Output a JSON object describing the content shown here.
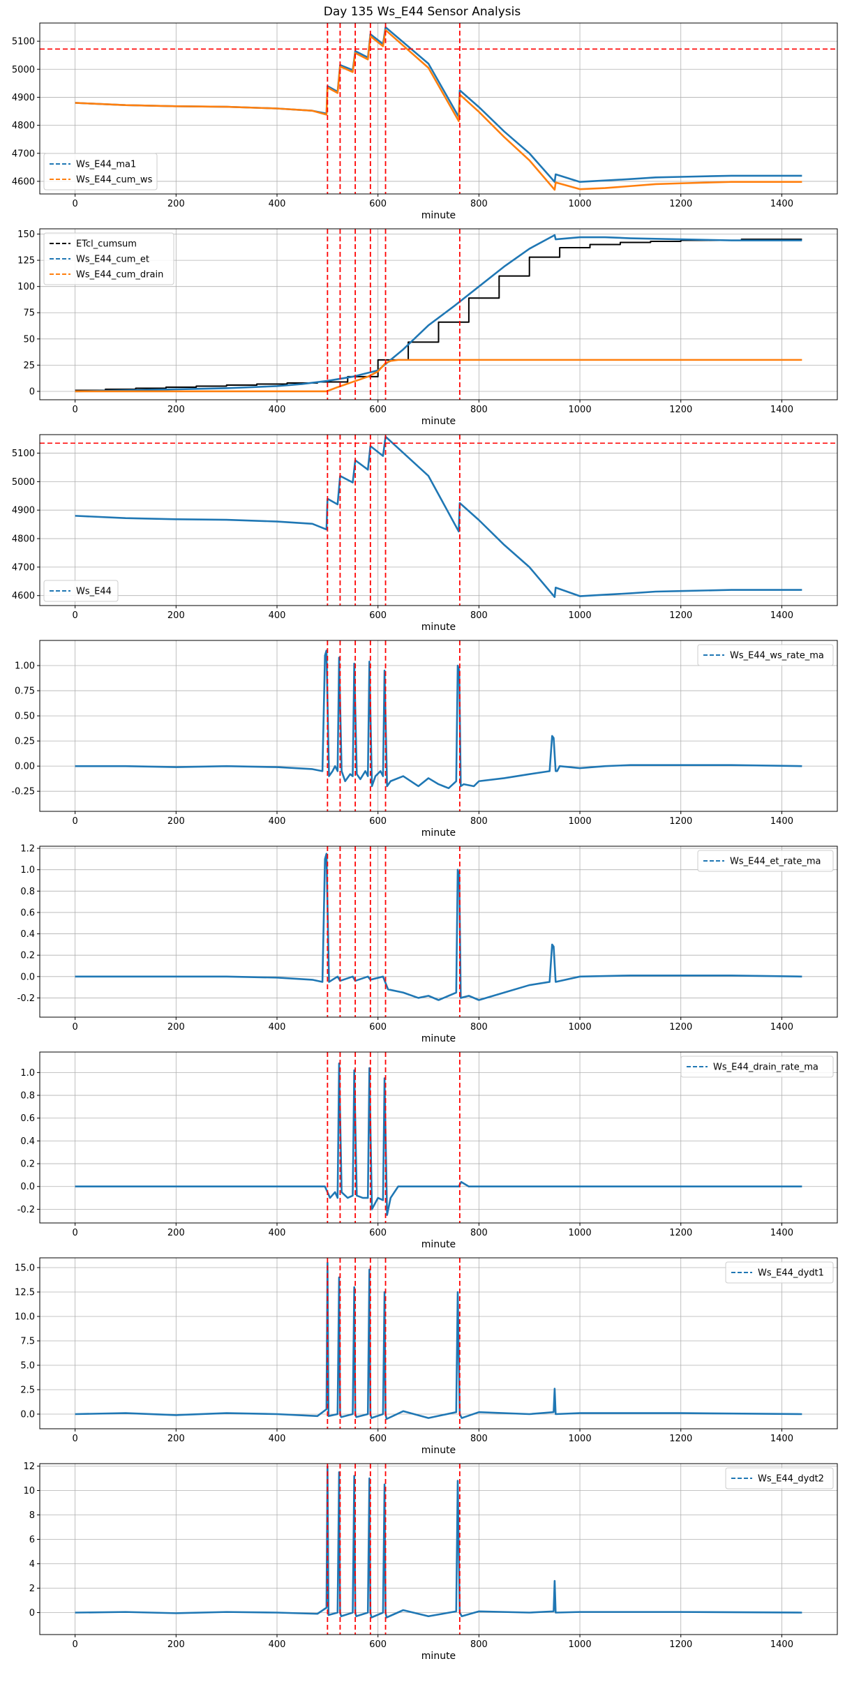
{
  "figure_title": "Day 135 Ws_E44 Sensor Analysis",
  "colors": {
    "blue": "#1f77b4",
    "orange": "#ff7f0e",
    "black": "#000000",
    "red": "#ff0000",
    "grid": "#b0b0b0"
  },
  "event_markers": [
    500,
    525,
    555,
    585,
    615,
    762
  ],
  "chart_data": [
    {
      "type": "line",
      "xlabel": "minute",
      "ylabel": "",
      "xlim": [
        -70,
        1510
      ],
      "ylim": [
        4555,
        5165
      ],
      "xticks": [
        0,
        200,
        400,
        600,
        800,
        1000,
        1200,
        1400
      ],
      "yticks": [
        4600,
        4700,
        4800,
        4900,
        5000,
        5100
      ],
      "hline": 5072,
      "legend": "lower-left",
      "series": [
        {
          "name": "Ws_E44_ma1",
          "color": "blue",
          "x": [
            0,
            100,
            200,
            300,
            400,
            470,
            498,
            500,
            520,
            525,
            550,
            555,
            580,
            585,
            610,
            615,
            700,
            760,
            762,
            800,
            850,
            900,
            950,
            952,
            1000,
            1050,
            1100,
            1150,
            1200,
            1300,
            1440
          ],
          "y": [
            4880,
            4872,
            4868,
            4866,
            4860,
            4852,
            4842,
            4940,
            4920,
            5015,
            4997,
            5065,
            5042,
            5125,
            5090,
            5150,
            5020,
            4830,
            4925,
            4865,
            4778,
            4700,
            4598,
            4625,
            4598,
            4603,
            4608,
            4614,
            4616,
            4620,
            4620
          ]
        },
        {
          "name": "Ws_E44_cum_ws",
          "color": "orange",
          "x": [
            0,
            100,
            200,
            300,
            400,
            470,
            498,
            500,
            520,
            525,
            550,
            555,
            580,
            585,
            610,
            615,
            700,
            760,
            762,
            800,
            850,
            900,
            950,
            952,
            1000,
            1050,
            1100,
            1150,
            1200,
            1300,
            1440
          ],
          "y": [
            4880,
            4872,
            4868,
            4866,
            4860,
            4852,
            4838,
            4935,
            4915,
            5010,
            4990,
            5058,
            5035,
            5118,
            5082,
            5140,
            5005,
            4815,
            4910,
            4848,
            4758,
            4675,
            4570,
            4596,
            4572,
            4576,
            4583,
            4590,
            4593,
            4598,
            4598
          ]
        }
      ]
    },
    {
      "type": "line",
      "xlabel": "minute",
      "ylabel": "",
      "xlim": [
        -70,
        1510
      ],
      "ylim": [
        -8,
        155
      ],
      "xticks": [
        0,
        200,
        400,
        600,
        800,
        1000,
        1200,
        1400
      ],
      "yticks": [
        0,
        25,
        50,
        75,
        100,
        125,
        150
      ],
      "legend": "upper-left",
      "series": [
        {
          "name": "ETcl_cumsum",
          "color": "black",
          "step": true,
          "x": [
            0,
            60,
            120,
            180,
            240,
            300,
            360,
            420,
            480,
            540,
            600,
            660,
            720,
            780,
            840,
            900,
            960,
            1020,
            1080,
            1140,
            1200,
            1260,
            1320,
            1380,
            1440
          ],
          "y": [
            1,
            2,
            3,
            4,
            5,
            6,
            7,
            8,
            9,
            14,
            30,
            47,
            66,
            89,
            110,
            128,
            137,
            140,
            142,
            143,
            144,
            144,
            145,
            145,
            145
          ]
        },
        {
          "name": "Ws_E44_cum_et",
          "color": "blue",
          "x": [
            0,
            100,
            200,
            300,
            400,
            450,
            500,
            550,
            600,
            650,
            700,
            750,
            800,
            850,
            900,
            950,
            952,
            1000,
            1050,
            1100,
            1200,
            1300,
            1440
          ],
          "y": [
            0,
            1,
            2,
            3,
            5,
            7,
            10,
            14,
            20,
            40,
            63,
            81,
            100,
            119,
            136,
            149,
            145,
            147,
            147,
            146,
            145,
            144,
            144
          ]
        },
        {
          "name": "Ws_E44_cum_drain",
          "color": "orange",
          "x": [
            0,
            100,
            200,
            300,
            400,
            498,
            520,
            550,
            580,
            600,
            615,
            625,
            640,
            700,
            800,
            1000,
            1200,
            1440
          ],
          "y": [
            0,
            0,
            0,
            0,
            0,
            0,
            4,
            9,
            14,
            19,
            27,
            29,
            30,
            30,
            30,
            30,
            30,
            30
          ]
        }
      ]
    },
    {
      "type": "line",
      "xlabel": "minute",
      "ylabel": "",
      "xlim": [
        -70,
        1510
      ],
      "ylim": [
        4565,
        5165
      ],
      "xticks": [
        0,
        200,
        400,
        600,
        800,
        1000,
        1200,
        1400
      ],
      "yticks": [
        4600,
        4700,
        4800,
        4900,
        5000,
        5100
      ],
      "hline": 5135,
      "legend": "lower-left",
      "series": [
        {
          "name": "Ws_E44",
          "color": "blue",
          "x": [
            0,
            100,
            200,
            300,
            400,
            470,
            498,
            500,
            520,
            525,
            550,
            555,
            580,
            585,
            610,
            615,
            700,
            760,
            762,
            800,
            850,
            900,
            950,
            952,
            1000,
            1050,
            1100,
            1150,
            1200,
            1300,
            1440
          ],
          "y": [
            4880,
            4872,
            4868,
            4866,
            4860,
            4852,
            4832,
            4940,
            4920,
            5020,
            4997,
            5075,
            5042,
            5125,
            5090,
            5158,
            5020,
            4825,
            4925,
            4865,
            4778,
            4700,
            4595,
            4628,
            4598,
            4603,
            4608,
            4614,
            4616,
            4620,
            4620
          ]
        }
      ]
    },
    {
      "type": "line",
      "xlabel": "minute",
      "ylabel": "",
      "xlim": [
        -70,
        1510
      ],
      "ylim": [
        -0.45,
        1.25
      ],
      "xticks": [
        0,
        200,
        400,
        600,
        800,
        1000,
        1200,
        1400
      ],
      "yticks": [
        -0.25,
        0.0,
        0.25,
        0.5,
        0.75,
        1.0
      ],
      "legend": "upper-right",
      "series": [
        {
          "name": "Ws_E44_ws_rate_ma",
          "color": "blue",
          "x": [
            0,
            100,
            200,
            300,
            400,
            470,
            490,
            495,
            498,
            503,
            510,
            515,
            520,
            523,
            528,
            535,
            545,
            550,
            553,
            558,
            565,
            575,
            580,
            583,
            588,
            595,
            605,
            610,
            613,
            618,
            625,
            650,
            680,
            700,
            720,
            740,
            755,
            758,
            761,
            764,
            770,
            790,
            800,
            850,
            900,
            940,
            945,
            948,
            952,
            955,
            960,
            1000,
            1050,
            1100,
            1200,
            1300,
            1440
          ],
          "y": [
            0,
            0,
            -0.01,
            0,
            -0.01,
            -0.03,
            -0.05,
            1.1,
            1.15,
            -0.1,
            -0.05,
            0.0,
            -0.05,
            1.08,
            -0.05,
            -0.15,
            -0.08,
            -0.1,
            1.02,
            -0.08,
            -0.13,
            -0.05,
            -0.1,
            1.04,
            -0.2,
            -0.1,
            -0.05,
            -0.1,
            0.95,
            -0.2,
            -0.15,
            -0.1,
            -0.2,
            -0.12,
            -0.18,
            -0.22,
            -0.15,
            1.0,
            0.95,
            -0.2,
            -0.18,
            -0.2,
            -0.15,
            -0.12,
            -0.08,
            -0.05,
            0.3,
            0.28,
            -0.05,
            -0.05,
            0.0,
            -0.02,
            0.0,
            0.01,
            0.01,
            0.01,
            0.0
          ]
        }
      ]
    },
    {
      "type": "line",
      "xlabel": "minute",
      "ylabel": "",
      "xlim": [
        -70,
        1510
      ],
      "ylim": [
        -0.38,
        1.22
      ],
      "xticks": [
        0,
        200,
        400,
        600,
        800,
        1000,
        1200,
        1400
      ],
      "yticks": [
        -0.2,
        0.0,
        0.2,
        0.4,
        0.6,
        0.8,
        1.0,
        1.2
      ],
      "legend": "upper-right",
      "series": [
        {
          "name": "Ws_E44_et_rate_ma",
          "color": "blue",
          "x": [
            0,
            100,
            200,
            300,
            400,
            470,
            490,
            495,
            498,
            503,
            520,
            525,
            550,
            555,
            580,
            585,
            610,
            620,
            650,
            680,
            700,
            720,
            740,
            755,
            758,
            761,
            764,
            780,
            800,
            850,
            900,
            940,
            945,
            948,
            952,
            1000,
            1100,
            1200,
            1300,
            1440
          ],
          "y": [
            0,
            0,
            0,
            0,
            -0.01,
            -0.03,
            -0.05,
            1.1,
            1.15,
            -0.05,
            0.0,
            -0.04,
            0.0,
            -0.04,
            0.0,
            -0.03,
            0.0,
            -0.12,
            -0.15,
            -0.2,
            -0.18,
            -0.22,
            -0.18,
            -0.15,
            1.0,
            0.95,
            -0.2,
            -0.18,
            -0.22,
            -0.15,
            -0.08,
            -0.05,
            0.3,
            0.28,
            -0.05,
            0.0,
            0.01,
            0.01,
            0.01,
            0.0
          ]
        }
      ]
    },
    {
      "type": "line",
      "xlabel": "minute",
      "ylabel": "",
      "xlim": [
        -70,
        1510
      ],
      "ylim": [
        -0.32,
        1.18
      ],
      "xticks": [
        0,
        200,
        400,
        600,
        800,
        1000,
        1200,
        1400
      ],
      "yticks": [
        -0.2,
        0.0,
        0.2,
        0.4,
        0.6,
        0.8,
        1.0
      ],
      "legend": "upper-right",
      "series": [
        {
          "name": "Ws_E44_drain_rate_ma",
          "color": "blue",
          "x": [
            0,
            100,
            200,
            300,
            400,
            495,
            505,
            515,
            520,
            523,
            528,
            540,
            550,
            553,
            558,
            570,
            580,
            583,
            588,
            600,
            610,
            613,
            618,
            625,
            640,
            650,
            700,
            760,
            765,
            780,
            800,
            900,
            1000,
            1200,
            1440
          ],
          "y": [
            0,
            0,
            0,
            0,
            0,
            0,
            -0.1,
            -0.05,
            -0.1,
            1.08,
            -0.05,
            -0.1,
            -0.08,
            1.02,
            -0.08,
            -0.1,
            -0.1,
            1.04,
            -0.2,
            -0.1,
            -0.12,
            0.95,
            -0.25,
            -0.1,
            0.0,
            0.0,
            0.0,
            0.0,
            0.04,
            0.0,
            0.0,
            0.0,
            0.0,
            0.0,
            0.0
          ]
        }
      ]
    },
    {
      "type": "line",
      "xlabel": "minute",
      "ylabel": "",
      "xlim": [
        -70,
        1510
      ],
      "ylim": [
        -1.5,
        16
      ],
      "xticks": [
        0,
        200,
        400,
        600,
        800,
        1000,
        1200,
        1400
      ],
      "yticks": [
        0.0,
        2.5,
        5.0,
        7.5,
        10.0,
        12.5,
        15.0
      ],
      "legend": "upper-right",
      "series": [
        {
          "name": "Ws_E44_dydt1",
          "color": "blue",
          "x": [
            0,
            100,
            200,
            300,
            400,
            480,
            498,
            500,
            502,
            520,
            523,
            525,
            527,
            550,
            553,
            555,
            557,
            580,
            583,
            585,
            587,
            610,
            613,
            615,
            617,
            650,
            700,
            755,
            758,
            762,
            766,
            800,
            900,
            948,
            950,
            952,
            1000,
            1200,
            1440
          ],
          "y": [
            0,
            0.1,
            -0.1,
            0.1,
            0,
            -0.2,
            0.5,
            15.5,
            -0.2,
            0,
            14,
            0,
            -0.3,
            0,
            13,
            0,
            -0.3,
            0,
            14.8,
            0,
            -0.4,
            0,
            12.5,
            0,
            -0.5,
            0.3,
            -0.4,
            0.2,
            12.5,
            0,
            -0.4,
            0.2,
            0,
            0.2,
            2.6,
            0,
            0.1,
            0.1,
            0
          ]
        }
      ]
    },
    {
      "type": "line",
      "xlabel": "minute",
      "ylabel": "",
      "xlim": [
        -70,
        1510
      ],
      "ylim": [
        -1.8,
        12.2
      ],
      "xticks": [
        0,
        200,
        400,
        600,
        800,
        1000,
        1200,
        1400
      ],
      "yticks": [
        0,
        2,
        4,
        6,
        8,
        10,
        12
      ],
      "legend": "upper-right",
      "series": [
        {
          "name": "Ws_E44_dydt2",
          "color": "blue",
          "x": [
            0,
            100,
            200,
            300,
            400,
            480,
            498,
            500,
            502,
            520,
            523,
            525,
            527,
            550,
            553,
            555,
            557,
            580,
            583,
            585,
            587,
            610,
            613,
            615,
            617,
            650,
            700,
            755,
            758,
            762,
            766,
            800,
            900,
            948,
            950,
            952,
            1000,
            1200,
            1440
          ],
          "y": [
            0,
            0.05,
            -0.05,
            0.05,
            0,
            -0.1,
            0.4,
            12,
            -0.2,
            0,
            11.5,
            0,
            -0.3,
            0,
            11.2,
            0,
            -0.3,
            0,
            11,
            0,
            -0.4,
            0,
            10.5,
            0,
            -0.4,
            0.2,
            -0.3,
            0.1,
            10.8,
            0,
            -0.3,
            0.1,
            0,
            0.1,
            2.6,
            0,
            0.05,
            0.05,
            0
          ]
        }
      ]
    }
  ]
}
